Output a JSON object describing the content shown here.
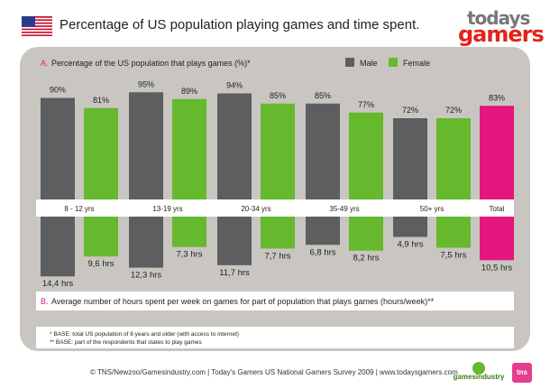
{
  "header": {
    "title": "Percentage of US population playing games and time spent.",
    "logo_line1": "todays",
    "logo_line2": "gamers"
  },
  "colors": {
    "male": "#5c5e60",
    "female": "#66b82d",
    "total": "#e3167f",
    "panel": "#c9c5c1",
    "accent_letter": "#e3167f"
  },
  "chart_data": {
    "type": "bar",
    "categories": [
      "8 - 12 yrs",
      "13-19 yrs",
      "20-34 yrs",
      "35-49 yrs",
      "50+ yrs",
      "Total"
    ],
    "section_a": {
      "letter": "A.",
      "title": "Percentage of the US population that plays games (%)*",
      "legend": [
        "Male",
        "Female"
      ],
      "series": [
        {
          "name": "Male",
          "values": [
            90,
            95,
            94,
            85,
            72
          ]
        },
        {
          "name": "Female",
          "values": [
            81,
            89,
            85,
            77,
            72
          ]
        },
        {
          "name": "Total",
          "values": [
            83
          ]
        }
      ],
      "labels": {
        "male": [
          "90%",
          "95%",
          "94%",
          "85%",
          "72%"
        ],
        "female": [
          "81%",
          "89%",
          "85%",
          "77%",
          "72%"
        ],
        "total": [
          "83%"
        ]
      },
      "ylim": [
        0,
        100
      ]
    },
    "section_b": {
      "letter": "B.",
      "title": "Average number of hours spent per week on games for part of population that plays games (hours/week)**",
      "series": [
        {
          "name": "Male",
          "values": [
            14.4,
            12.3,
            11.7,
            6.8,
            4.9
          ]
        },
        {
          "name": "Female",
          "values": [
            9.6,
            7.3,
            7.7,
            8.2,
            7.5
          ]
        },
        {
          "name": "Total",
          "values": [
            10.5
          ]
        }
      ],
      "labels": {
        "male": [
          "14,4 hrs",
          "12,3 hrs",
          "11,7 hrs",
          "6,8 hrs",
          "4,9 hrs"
        ],
        "female": [
          "9,6 hrs",
          "7,3 hrs",
          "7,7 hrs",
          "8,2 hrs",
          "7,5 hrs"
        ],
        "total": [
          "10,5 hrs"
        ]
      },
      "ylim": [
        0,
        15
      ]
    },
    "notes": [
      "* BASE: total US population of 8 years and older (with access to internet)",
      "** BASE: part of the respondents that states to play games"
    ]
  },
  "footer": {
    "source": "© TNS/Newzoo/Gamesindustry.com | Today's Gamers US National Gamers Survey 2009 | www.todaysgamers.com",
    "partner1": "gamesindustry",
    "partner2": "tns"
  }
}
